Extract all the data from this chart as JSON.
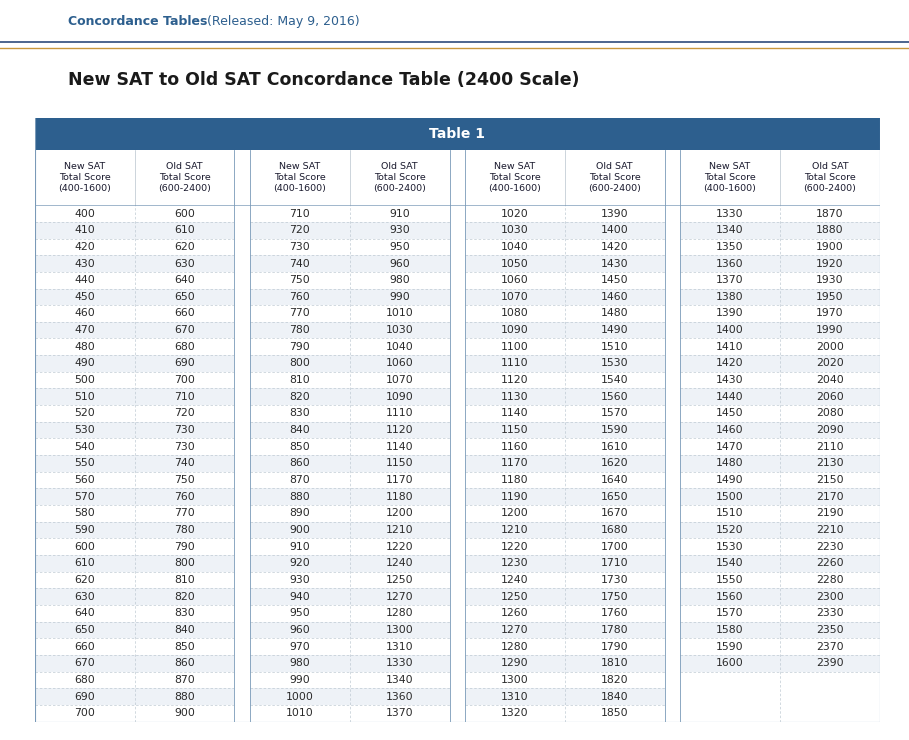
{
  "title": "New SAT to Old SAT Concordance Table (2400 Scale)",
  "header_title": "Table 1",
  "concordance_bold": "Concordance Tables",
  "concordance_normal": " (Released: May 9, 2016)",
  "col_headers": [
    "New SAT\nTotal Score\n(400-1600)",
    "Old SAT\nTotal Score\n(600-2400)"
  ],
  "table_data": [
    [
      400,
      600
    ],
    [
      410,
      610
    ],
    [
      420,
      620
    ],
    [
      430,
      630
    ],
    [
      440,
      640
    ],
    [
      450,
      650
    ],
    [
      460,
      660
    ],
    [
      470,
      670
    ],
    [
      480,
      680
    ],
    [
      490,
      690
    ],
    [
      500,
      700
    ],
    [
      510,
      710
    ],
    [
      520,
      720
    ],
    [
      530,
      730
    ],
    [
      540,
      730
    ],
    [
      550,
      740
    ],
    [
      560,
      750
    ],
    [
      570,
      760
    ],
    [
      580,
      770
    ],
    [
      590,
      780
    ],
    [
      600,
      790
    ],
    [
      610,
      800
    ],
    [
      620,
      810
    ],
    [
      630,
      820
    ],
    [
      640,
      830
    ],
    [
      650,
      840
    ],
    [
      660,
      850
    ],
    [
      670,
      860
    ],
    [
      680,
      870
    ],
    [
      690,
      880
    ],
    [
      700,
      900
    ],
    [
      710,
      910
    ],
    [
      720,
      930
    ],
    [
      730,
      950
    ],
    [
      740,
      960
    ],
    [
      750,
      980
    ],
    [
      760,
      990
    ],
    [
      770,
      1010
    ],
    [
      780,
      1030
    ],
    [
      790,
      1040
    ],
    [
      800,
      1060
    ],
    [
      810,
      1070
    ],
    [
      820,
      1090
    ],
    [
      830,
      1110
    ],
    [
      840,
      1120
    ],
    [
      850,
      1140
    ],
    [
      860,
      1150
    ],
    [
      870,
      1170
    ],
    [
      880,
      1180
    ],
    [
      890,
      1200
    ],
    [
      900,
      1210
    ],
    [
      910,
      1220
    ],
    [
      920,
      1240
    ],
    [
      930,
      1250
    ],
    [
      940,
      1270
    ],
    [
      950,
      1280
    ],
    [
      960,
      1300
    ],
    [
      970,
      1310
    ],
    [
      980,
      1330
    ],
    [
      990,
      1340
    ],
    [
      1000,
      1360
    ],
    [
      1010,
      1370
    ],
    [
      1020,
      1390
    ],
    [
      1030,
      1400
    ],
    [
      1040,
      1420
    ],
    [
      1050,
      1430
    ],
    [
      1060,
      1450
    ],
    [
      1070,
      1460
    ],
    [
      1080,
      1480
    ],
    [
      1090,
      1490
    ],
    [
      1100,
      1510
    ],
    [
      1110,
      1530
    ],
    [
      1120,
      1540
    ],
    [
      1130,
      1560
    ],
    [
      1140,
      1570
    ],
    [
      1150,
      1590
    ],
    [
      1160,
      1610
    ],
    [
      1170,
      1620
    ],
    [
      1180,
      1640
    ],
    [
      1190,
      1650
    ],
    [
      1200,
      1670
    ],
    [
      1210,
      1680
    ],
    [
      1220,
      1700
    ],
    [
      1230,
      1710
    ],
    [
      1240,
      1730
    ],
    [
      1250,
      1750
    ],
    [
      1260,
      1760
    ],
    [
      1270,
      1780
    ],
    [
      1280,
      1790
    ],
    [
      1290,
      1810
    ],
    [
      1300,
      1820
    ],
    [
      1310,
      1840
    ],
    [
      1320,
      1850
    ],
    [
      1330,
      1870
    ],
    [
      1340,
      1880
    ],
    [
      1350,
      1900
    ],
    [
      1360,
      1920
    ],
    [
      1370,
      1930
    ],
    [
      1380,
      1950
    ],
    [
      1390,
      1970
    ],
    [
      1400,
      1990
    ],
    [
      1410,
      2000
    ],
    [
      1420,
      2020
    ],
    [
      1430,
      2040
    ],
    [
      1440,
      2060
    ],
    [
      1450,
      2080
    ],
    [
      1460,
      2090
    ],
    [
      1470,
      2110
    ],
    [
      1480,
      2130
    ],
    [
      1490,
      2150
    ],
    [
      1500,
      2170
    ],
    [
      1510,
      2190
    ],
    [
      1520,
      2210
    ],
    [
      1530,
      2230
    ],
    [
      1540,
      2260
    ],
    [
      1550,
      2280
    ],
    [
      1560,
      2300
    ],
    [
      1570,
      2330
    ],
    [
      1580,
      2350
    ],
    [
      1590,
      2370
    ],
    [
      1600,
      2390
    ]
  ],
  "header_bg": "#2d5f8e",
  "header_text_color": "#FFFFFF",
  "top_label_color": "#2d5f8e",
  "title_color": "#1a1a1a",
  "bg_color": "#FFFFFF",
  "separator_color_blue": "#2d4a7a",
  "separator_color_orange": "#c8963c",
  "row_alt_color": "#eef2f7",
  "row_normal_color": "#FFFFFF",
  "cell_text_color": "#2a2a2a",
  "divider_color": "#b8c4ce",
  "outer_border_color": "#7a9ab8"
}
